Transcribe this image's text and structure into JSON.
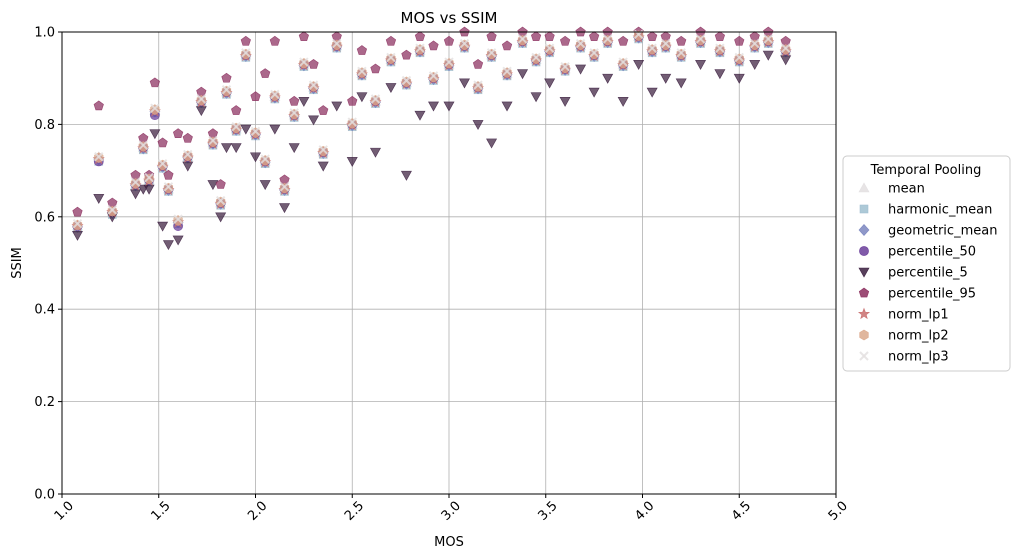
{
  "chart_data": {
    "type": "scatter",
    "title": "MOS vs SSIM",
    "xlabel": "MOS",
    "ylabel": "SSIM",
    "xlim": [
      1.0,
      5.0
    ],
    "ylim": [
      0.0,
      1.0
    ],
    "x_ticks": [
      "1.0",
      "1.5",
      "2.0",
      "2.5",
      "3.0",
      "3.5",
      "4.0",
      "4.5",
      "5.0"
    ],
    "y_ticks": [
      "0.0",
      "0.2",
      "0.4",
      "0.6",
      "0.8",
      "1.0"
    ],
    "grid": true,
    "legend_title": "Temporal Pooling",
    "legend_position": "center-right outside",
    "x": [
      1.08,
      1.19,
      1.26,
      1.38,
      1.42,
      1.45,
      1.48,
      1.52,
      1.55,
      1.6,
      1.65,
      1.72,
      1.78,
      1.82,
      1.85,
      1.9,
      1.95,
      2.0,
      2.05,
      2.1,
      2.15,
      2.2,
      2.25,
      2.3,
      2.35,
      2.42,
      2.5,
      2.55,
      2.62,
      2.7,
      2.78,
      2.85,
      2.92,
      3.0,
      3.08,
      3.15,
      3.22,
      3.3,
      3.38,
      3.45,
      3.52,
      3.6,
      3.68,
      3.75,
      3.82,
      3.9,
      3.98,
      4.05,
      4.12,
      4.2,
      4.3,
      4.4,
      4.5,
      4.58,
      4.65,
      4.74
    ],
    "series": [
      {
        "name": "mean",
        "color": "#e3dfe1",
        "marker": "triangle-up",
        "y": [
          0.58,
          0.73,
          0.61,
          0.67,
          0.75,
          0.68,
          0.83,
          0.71,
          0.66,
          0.59,
          0.73,
          0.85,
          0.76,
          0.63,
          0.87,
          0.79,
          0.95,
          0.78,
          0.72,
          0.86,
          0.66,
          0.82,
          0.93,
          0.88,
          0.74,
          0.97,
          0.8,
          0.91,
          0.85,
          0.94,
          0.89,
          0.96,
          0.9,
          0.93,
          0.97,
          0.88,
          0.95,
          0.91,
          0.98,
          0.94,
          0.96,
          0.92,
          0.97,
          0.95,
          0.98,
          0.93,
          0.99,
          0.96,
          0.97,
          0.95,
          0.98,
          0.96,
          0.94,
          0.97,
          0.98,
          0.96
        ]
      },
      {
        "name": "harmonic_mean",
        "color": "#9fbfd0",
        "marker": "square",
        "y": [
          0.575,
          0.72,
          0.605,
          0.665,
          0.745,
          0.675,
          0.825,
          0.705,
          0.655,
          0.585,
          0.725,
          0.845,
          0.755,
          0.625,
          0.865,
          0.785,
          0.945,
          0.775,
          0.715,
          0.855,
          0.655,
          0.815,
          0.925,
          0.875,
          0.735,
          0.965,
          0.795,
          0.905,
          0.845,
          0.935,
          0.885,
          0.955,
          0.895,
          0.925,
          0.965,
          0.875,
          0.945,
          0.905,
          0.975,
          0.935,
          0.955,
          0.915,
          0.965,
          0.945,
          0.975,
          0.925,
          0.985,
          0.955,
          0.965,
          0.945,
          0.975,
          0.955,
          0.935,
          0.965,
          0.975,
          0.955
        ]
      },
      {
        "name": "geometric_mean",
        "color": "#7b86c0",
        "marker": "diamond",
        "y": [
          0.578,
          0.725,
          0.608,
          0.668,
          0.748,
          0.678,
          0.828,
          0.708,
          0.658,
          0.588,
          0.728,
          0.848,
          0.758,
          0.628,
          0.868,
          0.788,
          0.948,
          0.778,
          0.718,
          0.858,
          0.658,
          0.818,
          0.928,
          0.878,
          0.738,
          0.968,
          0.798,
          0.908,
          0.848,
          0.938,
          0.888,
          0.958,
          0.898,
          0.928,
          0.968,
          0.878,
          0.948,
          0.908,
          0.978,
          0.938,
          0.958,
          0.918,
          0.968,
          0.948,
          0.978,
          0.928,
          0.988,
          0.958,
          0.968,
          0.948,
          0.978,
          0.958,
          0.938,
          0.968,
          0.978,
          0.958
        ]
      },
      {
        "name": "percentile_50",
        "color": "#6a3d9a",
        "marker": "circle",
        "y": [
          0.58,
          0.72,
          0.61,
          0.67,
          0.75,
          0.68,
          0.82,
          0.71,
          0.66,
          0.58,
          0.73,
          0.85,
          0.76,
          0.63,
          0.87,
          0.79,
          0.95,
          0.78,
          0.72,
          0.86,
          0.66,
          0.82,
          0.93,
          0.88,
          0.74,
          0.97,
          0.8,
          0.91,
          0.85,
          0.94,
          0.89,
          0.96,
          0.9,
          0.93,
          0.97,
          0.88,
          0.95,
          0.91,
          0.98,
          0.94,
          0.96,
          0.92,
          0.97,
          0.95,
          0.98,
          0.93,
          0.99,
          0.96,
          0.97,
          0.95,
          0.98,
          0.96,
          0.94,
          0.97,
          0.98,
          0.96
        ]
      },
      {
        "name": "percentile_5",
        "color": "#3b1f3f",
        "marker": "triangle-down",
        "y": [
          0.56,
          0.64,
          0.6,
          0.65,
          0.66,
          0.66,
          0.78,
          0.58,
          0.54,
          0.55,
          0.71,
          0.83,
          0.67,
          0.6,
          0.75,
          0.75,
          0.79,
          0.73,
          0.67,
          0.79,
          0.62,
          0.75,
          0.85,
          0.81,
          0.71,
          0.84,
          0.72,
          0.86,
          0.74,
          0.88,
          0.69,
          0.82,
          0.84,
          0.84,
          0.89,
          0.8,
          0.76,
          0.84,
          0.91,
          0.86,
          0.89,
          0.85,
          0.92,
          0.87,
          0.9,
          0.85,
          0.93,
          0.87,
          0.9,
          0.89,
          0.93,
          0.91,
          0.9,
          0.93,
          0.95,
          0.94
        ]
      },
      {
        "name": "percentile_95",
        "color": "#8b2e5e",
        "marker": "pentagon",
        "y": [
          0.61,
          0.84,
          0.63,
          0.69,
          0.77,
          0.69,
          0.89,
          0.76,
          0.69,
          0.78,
          0.77,
          0.87,
          0.78,
          0.67,
          0.9,
          0.83,
          0.98,
          0.86,
          0.91,
          0.98,
          0.68,
          0.85,
          0.99,
          0.93,
          0.83,
          0.99,
          0.85,
          0.96,
          0.92,
          0.98,
          0.95,
          0.99,
          0.97,
          0.98,
          1.0,
          0.93,
          0.99,
          0.97,
          1.0,
          0.99,
          0.99,
          0.98,
          1.0,
          0.99,
          1.0,
          0.98,
          1.0,
          0.99,
          0.99,
          0.98,
          1.0,
          0.99,
          0.98,
          0.99,
          1.0,
          0.98
        ]
      },
      {
        "name": "norm_lp1",
        "color": "#c96f6f",
        "marker": "star",
        "y": [
          0.58,
          0.725,
          0.61,
          0.668,
          0.748,
          0.678,
          0.828,
          0.708,
          0.658,
          0.588,
          0.728,
          0.848,
          0.758,
          0.628,
          0.868,
          0.788,
          0.948,
          0.778,
          0.718,
          0.858,
          0.658,
          0.818,
          0.928,
          0.878,
          0.738,
          0.968,
          0.798,
          0.908,
          0.848,
          0.938,
          0.888,
          0.958,
          0.898,
          0.928,
          0.968,
          0.878,
          0.948,
          0.908,
          0.978,
          0.938,
          0.958,
          0.918,
          0.968,
          0.948,
          0.978,
          0.928,
          0.988,
          0.958,
          0.968,
          0.948,
          0.978,
          0.958,
          0.938,
          0.968,
          0.978,
          0.958
        ]
      },
      {
        "name": "norm_lp2",
        "color": "#dba98c",
        "marker": "hexagon",
        "y": [
          0.582,
          0.728,
          0.612,
          0.672,
          0.752,
          0.682,
          0.832,
          0.712,
          0.662,
          0.592,
          0.732,
          0.852,
          0.762,
          0.632,
          0.872,
          0.792,
          0.952,
          0.782,
          0.722,
          0.862,
          0.662,
          0.822,
          0.932,
          0.882,
          0.742,
          0.972,
          0.802,
          0.912,
          0.852,
          0.942,
          0.892,
          0.962,
          0.902,
          0.932,
          0.972,
          0.882,
          0.952,
          0.912,
          0.982,
          0.942,
          0.962,
          0.922,
          0.972,
          0.952,
          0.982,
          0.932,
          0.992,
          0.962,
          0.972,
          0.952,
          0.982,
          0.962,
          0.942,
          0.972,
          0.982,
          0.962
        ]
      },
      {
        "name": "norm_lp3",
        "color": "#e4e0e0",
        "marker": "x",
        "y": [
          0.585,
          0.73,
          0.615,
          0.675,
          0.755,
          0.685,
          0.835,
          0.715,
          0.665,
          0.595,
          0.735,
          0.855,
          0.765,
          0.635,
          0.875,
          0.795,
          0.955,
          0.785,
          0.725,
          0.865,
          0.665,
          0.825,
          0.935,
          0.885,
          0.745,
          0.975,
          0.805,
          0.915,
          0.855,
          0.945,
          0.895,
          0.965,
          0.905,
          0.935,
          0.975,
          0.885,
          0.955,
          0.915,
          0.985,
          0.945,
          0.965,
          0.925,
          0.975,
          0.955,
          0.985,
          0.935,
          0.995,
          0.965,
          0.975,
          0.955,
          0.985,
          0.965,
          0.945,
          0.975,
          0.985,
          0.965
        ]
      }
    ]
  }
}
